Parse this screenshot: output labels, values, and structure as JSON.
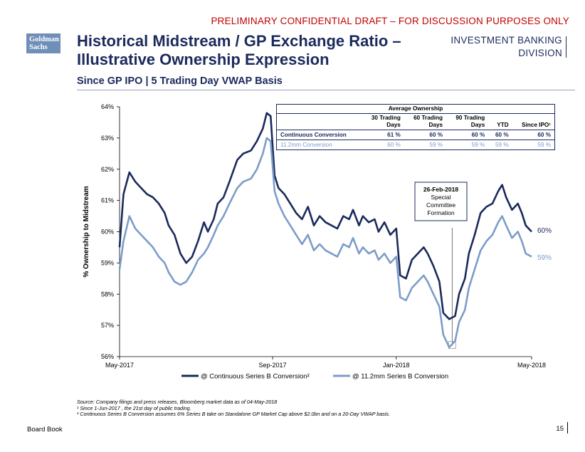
{
  "header": {
    "draft_notice": "PRELIMINARY CONFIDENTIAL DRAFT – FOR DISCUSSION PURPOSES ONLY",
    "logo_line1": "Goldman",
    "logo_line2": "Sachs",
    "title_line1": "Historical Midstream / GP Exchange Ratio –",
    "title_line2": "Illustrative Ownership Expression",
    "subtitle": "Since GP IPO | 5 Trading Day VWAP Basis",
    "division_line1": "INVESTMENT BANKING",
    "division_line2": "DIVISION"
  },
  "table": {
    "title": "Average Ownership",
    "columns": [
      {
        "l1": "30 Trading",
        "l2": "Days"
      },
      {
        "l1": "60 Trading",
        "l2": "Days"
      },
      {
        "l1": "90 Trading",
        "l2": "Days"
      },
      {
        "l1": "",
        "l2": "YTD"
      },
      {
        "l1": "",
        "l2": "Since IPO¹"
      }
    ],
    "rows": [
      {
        "label": "Continuous Conversion",
        "values": [
          "61 %",
          "60 %",
          "60 %",
          "60 %",
          "60 %"
        ]
      },
      {
        "label": "11.2mm Conversion",
        "values": [
          "60 %",
          "59 %",
          "59 %",
          "59 %",
          "59 %"
        ]
      }
    ]
  },
  "chart_data": {
    "type": "line",
    "ylabel": "% Ownership to Midstream",
    "ylim": [
      56,
      64
    ],
    "yticks": [
      "56%",
      "57%",
      "58%",
      "59%",
      "60%",
      "61%",
      "62%",
      "63%",
      "64%"
    ],
    "xticks": [
      "May-2017",
      "Sep-2017",
      "Jan-2018",
      "May-2018"
    ],
    "annotation": {
      "date": "26-Feb-2018",
      "l1": "Special",
      "l2": "Committee",
      "l3": "Formation"
    },
    "series": [
      {
        "name": "@ Continuous Series B Conversion²",
        "color": "#1b2a5c",
        "end_label": "60%",
        "points": [
          [
            0,
            59.5
          ],
          [
            2,
            61.2
          ],
          [
            5,
            61.9
          ],
          [
            8,
            61.6
          ],
          [
            11,
            61.4
          ],
          [
            14,
            61.2
          ],
          [
            17,
            61.1
          ],
          [
            20,
            60.9
          ],
          [
            23,
            60.6
          ],
          [
            25,
            60.2
          ],
          [
            28,
            59.9
          ],
          [
            31,
            59.3
          ],
          [
            34,
            59.0
          ],
          [
            37,
            59.2
          ],
          [
            40,
            59.7
          ],
          [
            43,
            60.3
          ],
          [
            45,
            60.0
          ],
          [
            48,
            60.4
          ],
          [
            50,
            60.9
          ],
          [
            53,
            61.1
          ],
          [
            56,
            61.6
          ],
          [
            60,
            62.3
          ],
          [
            63,
            62.5
          ],
          [
            67,
            62.6
          ],
          [
            70,
            62.9
          ],
          [
            73,
            63.3
          ],
          [
            75,
            63.8
          ],
          [
            77,
            63.7
          ],
          [
            79,
            61.8
          ],
          [
            81,
            61.4
          ],
          [
            84,
            61.2
          ],
          [
            87,
            60.9
          ],
          [
            90,
            60.6
          ],
          [
            93,
            60.4
          ],
          [
            96,
            60.8
          ],
          [
            99,
            60.2
          ],
          [
            102,
            60.5
          ],
          [
            105,
            60.3
          ],
          [
            108,
            60.2
          ],
          [
            111,
            60.1
          ],
          [
            114,
            60.5
          ],
          [
            117,
            60.4
          ],
          [
            119,
            60.7
          ],
          [
            122,
            60.2
          ],
          [
            124,
            60.5
          ],
          [
            127,
            60.3
          ],
          [
            130,
            60.4
          ],
          [
            132,
            60.0
          ],
          [
            135,
            60.3
          ],
          [
            138,
            59.9
          ],
          [
            141,
            60.1
          ],
          [
            143,
            58.6
          ],
          [
            146,
            58.5
          ],
          [
            149,
            59.1
          ],
          [
            152,
            59.3
          ],
          [
            155,
            59.5
          ],
          [
            157,
            59.3
          ],
          [
            160,
            58.9
          ],
          [
            163,
            58.4
          ],
          [
            165,
            57.4
          ],
          [
            168,
            57.2
          ],
          [
            171,
            57.3
          ],
          [
            173,
            58.0
          ],
          [
            176,
            58.5
          ],
          [
            178,
            59.3
          ],
          [
            181,
            59.9
          ],
          [
            184,
            60.6
          ],
          [
            187,
            60.8
          ],
          [
            190,
            60.9
          ],
          [
            193,
            61.3
          ],
          [
            195,
            61.5
          ],
          [
            197,
            61.1
          ],
          [
            200,
            60.7
          ],
          [
            203,
            60.9
          ],
          [
            205,
            60.6
          ],
          [
            207,
            60.2
          ],
          [
            210,
            60.0
          ]
        ]
      },
      {
        "name": "@ 11.2mm Series B Conversion",
        "color": "#7c9cc9",
        "end_label": "59%",
        "points": [
          [
            0,
            58.8
          ],
          [
            2,
            59.7
          ],
          [
            5,
            60.5
          ],
          [
            8,
            60.1
          ],
          [
            11,
            59.9
          ],
          [
            14,
            59.7
          ],
          [
            17,
            59.5
          ],
          [
            20,
            59.2
          ],
          [
            23,
            59.0
          ],
          [
            25,
            58.7
          ],
          [
            28,
            58.4
          ],
          [
            31,
            58.3
          ],
          [
            34,
            58.4
          ],
          [
            37,
            58.7
          ],
          [
            40,
            59.1
          ],
          [
            43,
            59.3
          ],
          [
            45,
            59.5
          ],
          [
            48,
            59.9
          ],
          [
            50,
            60.2
          ],
          [
            53,
            60.5
          ],
          [
            56,
            60.9
          ],
          [
            60,
            61.4
          ],
          [
            63,
            61.6
          ],
          [
            67,
            61.7
          ],
          [
            70,
            62.0
          ],
          [
            73,
            62.5
          ],
          [
            75,
            63.0
          ],
          [
            77,
            62.9
          ],
          [
            79,
            61.3
          ],
          [
            81,
            60.9
          ],
          [
            84,
            60.5
          ],
          [
            87,
            60.2
          ],
          [
            90,
            59.9
          ],
          [
            93,
            59.6
          ],
          [
            96,
            59.9
          ],
          [
            99,
            59.4
          ],
          [
            102,
            59.6
          ],
          [
            105,
            59.4
          ],
          [
            108,
            59.3
          ],
          [
            111,
            59.2
          ],
          [
            114,
            59.6
          ],
          [
            117,
            59.5
          ],
          [
            119,
            59.8
          ],
          [
            122,
            59.3
          ],
          [
            124,
            59.5
          ],
          [
            127,
            59.3
          ],
          [
            130,
            59.4
          ],
          [
            132,
            59.1
          ],
          [
            135,
            59.3
          ],
          [
            138,
            59.0
          ],
          [
            141,
            59.2
          ],
          [
            143,
            57.9
          ],
          [
            146,
            57.8
          ],
          [
            149,
            58.2
          ],
          [
            152,
            58.4
          ],
          [
            155,
            58.6
          ],
          [
            157,
            58.4
          ],
          [
            160,
            58.0
          ],
          [
            163,
            57.6
          ],
          [
            165,
            56.7
          ],
          [
            168,
            56.3
          ],
          [
            171,
            56.5
          ],
          [
            173,
            57.1
          ],
          [
            176,
            57.5
          ],
          [
            178,
            58.2
          ],
          [
            181,
            58.8
          ],
          [
            184,
            59.4
          ],
          [
            187,
            59.7
          ],
          [
            190,
            59.9
          ],
          [
            193,
            60.3
          ],
          [
            195,
            60.5
          ],
          [
            197,
            60.2
          ],
          [
            200,
            59.8
          ],
          [
            203,
            60.0
          ],
          [
            205,
            59.7
          ],
          [
            207,
            59.3
          ],
          [
            210,
            59.2
          ]
        ]
      }
    ]
  },
  "notes": {
    "source": "Source: Company filings and press releases, Bloomberg market data as of 04-May-2018",
    "note1": "¹ Since 1-Jun-2017 , the 21st day of public trading.",
    "note2": "² Continuous Series B Conversion assumes 6% Series B take on Standalone GP Market Cap above $2.0bn and on a 20-Day VWAP basis."
  },
  "footer": {
    "left": "Board Book",
    "page": "15"
  }
}
